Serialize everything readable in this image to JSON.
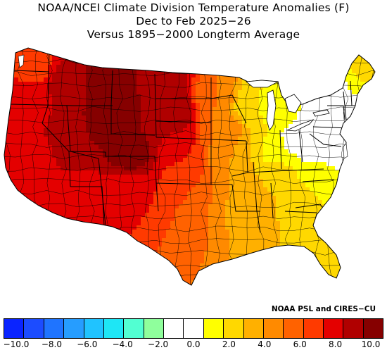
{
  "title": {
    "line1": "NOAA/NCEI Climate Division Temperature Anomalies (F)",
    "line2": "Dec to Feb 2025−26",
    "line3": "Versus 1895−2000 Longterm Average"
  },
  "credit": "NOAA PSL and CIRES−CU",
  "colorbar": {
    "colors": [
      "#0a24ff",
      "#1c4cff",
      "#1f74ff",
      "#269dff",
      "#20c3ff",
      "#1ee6f5",
      "#52ffd2",
      "#8fff9c",
      "#ffffff",
      "#ffffff",
      "#ffff00",
      "#ffd800",
      "#ffb000",
      "#ff8a00",
      "#ff6200",
      "#ff3a00",
      "#e40000",
      "#b00000",
      "#860000"
    ],
    "tick_labels": [
      "−10.0",
      "−8.0",
      "−6.0",
      "−4.0",
      "−2.0",
      "0.0",
      "2.0",
      "4.0",
      "6.0",
      "8.0",
      "10.0"
    ]
  },
  "map_data": {
    "type": "choropleth",
    "unit": "F",
    "regions": [
      {
        "name": "Washington",
        "anomaly": 5.5
      },
      {
        "name": "Oregon",
        "anomaly": 6.5
      },
      {
        "name": "California",
        "anomaly": 6.5
      },
      {
        "name": "Nevada",
        "anomaly": 7.0
      },
      {
        "name": "Idaho",
        "anomaly": 7.5
      },
      {
        "name": "Montana",
        "anomaly": 8.5
      },
      {
        "name": "Wyoming",
        "anomaly": 9.0
      },
      {
        "name": "Utah",
        "anomaly": 8.0
      },
      {
        "name": "Colorado",
        "anomaly": 8.5
      },
      {
        "name": "Arizona",
        "anomaly": 6.5
      },
      {
        "name": "New Mexico",
        "anomaly": 6.5
      },
      {
        "name": "North Dakota",
        "anomaly": 7.5
      },
      {
        "name": "South Dakota",
        "anomaly": 8.0
      },
      {
        "name": "Nebraska",
        "anomaly": 7.0
      },
      {
        "name": "Kansas",
        "anomaly": 6.0
      },
      {
        "name": "Oklahoma",
        "anomaly": 5.0
      },
      {
        "name": "Texas",
        "anomaly": 5.0
      },
      {
        "name": "Minnesota",
        "anomaly": 4.0
      },
      {
        "name": "Iowa",
        "anomaly": 4.0
      },
      {
        "name": "Missouri",
        "anomaly": 3.0
      },
      {
        "name": "Arkansas",
        "anomaly": 3.0
      },
      {
        "name": "Louisiana",
        "anomaly": 3.0
      },
      {
        "name": "Wisconsin",
        "anomaly": 1.0
      },
      {
        "name": "Illinois",
        "anomaly": 2.0
      },
      {
        "name": "Michigan",
        "anomaly": 0.5
      },
      {
        "name": "Indiana",
        "anomaly": 0.5
      },
      {
        "name": "Ohio",
        "anomaly": -0.5
      },
      {
        "name": "Kentucky",
        "anomaly": 1.0
      },
      {
        "name": "Tennessee",
        "anomaly": 2.0
      },
      {
        "name": "Mississippi",
        "anomaly": 2.5
      },
      {
        "name": "Alabama",
        "anomaly": 2.0
      },
      {
        "name": "Georgia",
        "anomaly": 1.5
      },
      {
        "name": "Florida",
        "anomaly": 1.5
      },
      {
        "name": "South Carolina",
        "anomaly": 1.0
      },
      {
        "name": "North Carolina",
        "anomaly": 0.5
      },
      {
        "name": "Virginia",
        "anomaly": -0.5
      },
      {
        "name": "West Virginia",
        "anomaly": -0.5
      },
      {
        "name": "Pennsylvania",
        "anomaly": -1.5
      },
      {
        "name": "New York",
        "anomaly": -1.5
      },
      {
        "name": "New Jersey",
        "anomaly": -1.5
      },
      {
        "name": "Maryland",
        "anomaly": -1.5
      },
      {
        "name": "Delaware",
        "anomaly": -1.0
      },
      {
        "name": "Connecticut",
        "anomaly": -1.5
      },
      {
        "name": "Rhode Island",
        "anomaly": -1.0
      },
      {
        "name": "Massachusetts",
        "anomaly": -1.0
      },
      {
        "name": "Vermont",
        "anomaly": -0.5
      },
      {
        "name": "New Hampshire",
        "anomaly": 0.5
      },
      {
        "name": "Maine",
        "anomaly": 1.5
      }
    ]
  }
}
